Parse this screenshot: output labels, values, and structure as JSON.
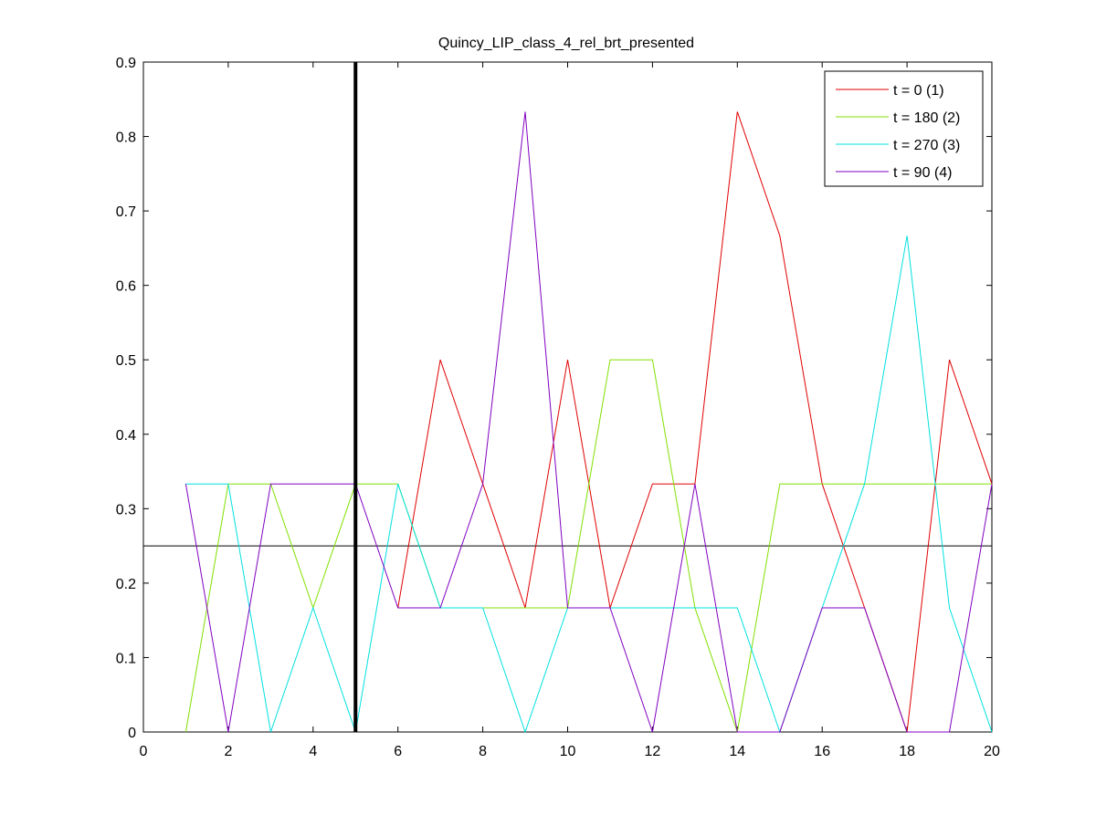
{
  "chart_data": {
    "type": "line",
    "title": "Quincy_LIP_class_4_rel_brt_presented",
    "xlabel": "",
    "ylabel": "",
    "xlim": [
      0,
      20
    ],
    "ylim": [
      0,
      0.9
    ],
    "xticks": [
      0,
      2,
      4,
      6,
      8,
      10,
      12,
      14,
      16,
      18,
      20
    ],
    "yticks": [
      0,
      0.1,
      0.2,
      0.3,
      0.4,
      0.5,
      0.6,
      0.7,
      0.8,
      0.9
    ],
    "grid": false,
    "legend_position": "top-right",
    "reference_lines": {
      "vertical_x": 5,
      "horizontal_y": 0.25
    },
    "series": [
      {
        "name": "t = 0 (1)",
        "color": "#e00000",
        "x": [
          6,
          7,
          8,
          9,
          10,
          11,
          12,
          13,
          14,
          15,
          16,
          17,
          18,
          19,
          20
        ],
        "y": [
          0.1667,
          0.5,
          0.3333,
          0.1667,
          0.5,
          0.1667,
          0.3333,
          0.3333,
          0.8333,
          0.6667,
          0.3333,
          0.1667,
          0,
          0.5,
          0.3333
        ]
      },
      {
        "name": "t = 180 (2)",
        "color": "#80e000",
        "x": [
          1,
          2,
          3,
          4,
          5,
          6,
          7,
          8,
          9,
          10,
          11,
          12,
          13,
          14,
          15,
          16,
          17,
          18,
          19,
          20
        ],
        "y": [
          0,
          0.3333,
          0.3333,
          0.1667,
          0.3333,
          0.3333,
          0.1667,
          0.1667,
          0.1667,
          0.1667,
          0.5,
          0.5,
          0.1667,
          0,
          0.3333,
          0.3333,
          0.3333,
          0.3333,
          0.3333,
          0.3333
        ]
      },
      {
        "name": "t = 270 (3)",
        "color": "#00e0e0",
        "x": [
          1,
          2,
          3,
          4,
          5,
          6,
          7,
          8,
          9,
          10,
          11,
          12,
          13,
          14,
          15,
          16,
          17,
          18,
          19,
          20
        ],
        "y": [
          0.3333,
          0.3333,
          0,
          0.1667,
          0,
          0.3333,
          0.1667,
          0.1667,
          0,
          0.1667,
          0.1667,
          0.1667,
          0.1667,
          0.1667,
          0,
          0.1667,
          0.3333,
          0.6667,
          0.1667,
          0
        ]
      },
      {
        "name": "t = 90 (4)",
        "color": "#8000c0",
        "x": [
          1,
          2,
          3,
          4,
          5,
          6,
          7,
          8,
          9,
          10,
          11,
          12,
          13,
          14,
          15,
          16,
          17,
          18,
          19,
          20
        ],
        "y": [
          0.3333,
          0,
          0.3333,
          0.3333,
          0.3333,
          0.1667,
          0.1667,
          0.3333,
          0.8333,
          0.1667,
          0.1667,
          0,
          0.3333,
          0,
          0,
          0.1667,
          0.1667,
          0,
          0,
          0.3333
        ]
      }
    ]
  }
}
